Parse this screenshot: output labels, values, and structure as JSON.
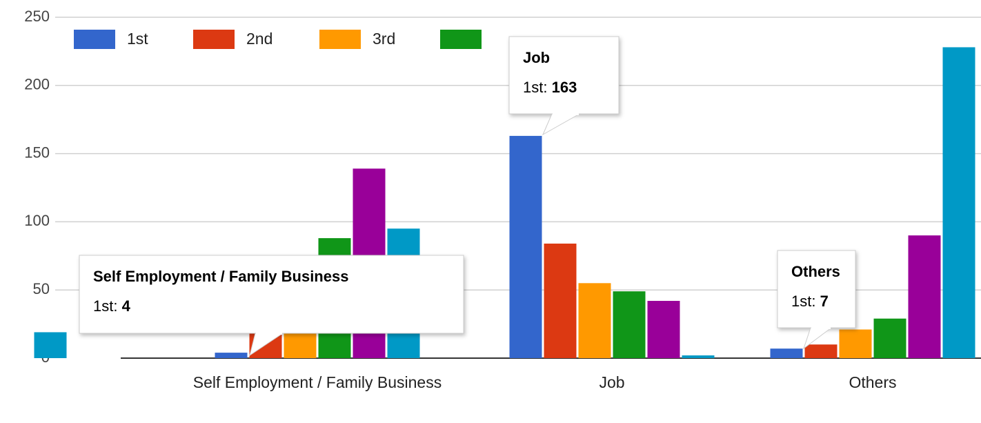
{
  "chart_data": {
    "type": "bar",
    "categories": [
      null,
      "Self Employment / Family Business",
      "Job",
      "Others"
    ],
    "series": [
      {
        "name": "1st",
        "color": "#3366cc",
        "values": [
          null,
          4,
          163,
          7
        ]
      },
      {
        "name": "2nd",
        "color": "#dc3912",
        "values": [
          null,
          25,
          84,
          10
        ]
      },
      {
        "name": "3rd",
        "color": "#ff9900",
        "values": [
          null,
          30,
          55,
          21
        ]
      },
      {
        "color": "#109618",
        "values": [
          null,
          88,
          49,
          29
        ]
      },
      {
        "color": "#990099",
        "values": [
          null,
          139,
          42,
          90
        ]
      },
      {
        "color": "#0099c6",
        "values": [
          19,
          95,
          2,
          228
        ]
      }
    ],
    "ylim": [
      0,
      250
    ],
    "yticks": [
      0,
      50,
      100,
      150,
      200,
      250
    ],
    "grid": true,
    "legend": "top"
  }
}
